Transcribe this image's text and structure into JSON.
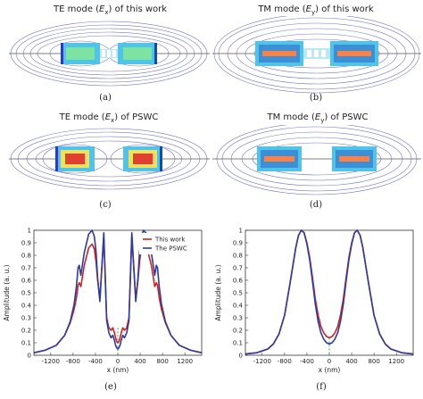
{
  "panels": {
    "a": {
      "title_pre": "TE mode (",
      "title_var": "E",
      "title_sub": "x",
      "title_post": ") of this work",
      "label": "(a)"
    },
    "b": {
      "title_pre": "TM mode (",
      "title_var": "E",
      "title_sub": "y",
      "title_post": ") of this work",
      "label": "(b)"
    },
    "c": {
      "title_pre": "TE mode (",
      "title_var": "E",
      "title_sub": "x",
      "title_post": ") of PSWC",
      "label": "(c)"
    },
    "d": {
      "title_pre": "TM mode (",
      "title_var": "E",
      "title_sub": "y",
      "title_post": ") of PSWC",
      "label": "(d)"
    },
    "e": {
      "label": "(e)"
    },
    "f": {
      "label": "(f)"
    }
  },
  "colors": {
    "this_work": "#d42020",
    "pswc": "#2b3aa8",
    "center_line": "#2ca02c",
    "contour": "#7777cc"
  },
  "chart_data": [
    {
      "type": "line",
      "xlabel": "x (nm)",
      "ylabel": "Amplitude (a. u.)",
      "xlim": [
        -1500,
        1500
      ],
      "ylim": [
        0,
        1
      ],
      "xticks": [
        -1200,
        -800,
        -400,
        0,
        400,
        800,
        1200
      ],
      "xtick_labels": [
        "-1200",
        "-800",
        "-400",
        "0",
        "400",
        "800",
        "1200"
      ],
      "yticks": [
        0,
        0.1,
        0.2,
        0.3,
        0.4,
        0.5,
        0.6,
        0.7,
        0.8,
        0.9,
        1
      ],
      "ytick_labels": [
        "0",
        "0.1",
        "0.2",
        "0.3",
        "0.4",
        "0.5",
        "0.6",
        "0.7",
        "0.8",
        "0.9",
        "1"
      ],
      "legend": "top-right",
      "series": [
        {
          "name": "This work",
          "x": [
            -1500,
            -1300,
            -1100,
            -950,
            -850,
            -780,
            -740,
            -710,
            -690,
            -660,
            -600,
            -520,
            -460,
            -420,
            -390,
            -360,
            -320,
            -250,
            -200,
            -160,
            -120,
            -90,
            -60,
            -40,
            -20,
            0,
            20,
            40,
            60,
            90,
            120,
            160,
            200,
            250,
            320,
            360,
            390,
            420,
            460,
            520,
            600,
            660,
            690,
            710,
            740,
            780,
            850,
            950,
            1100,
            1300,
            1500
          ],
          "y": [
            0.02,
            0.04,
            0.08,
            0.16,
            0.26,
            0.37,
            0.46,
            0.56,
            0.58,
            0.55,
            0.72,
            0.86,
            0.89,
            0.85,
            0.75,
            0.6,
            0.45,
            0.95,
            0.3,
            0.22,
            0.2,
            0.22,
            0.18,
            0.14,
            0.11,
            0.1,
            0.11,
            0.14,
            0.18,
            0.22,
            0.2,
            0.22,
            0.3,
            0.95,
            0.45,
            0.6,
            0.75,
            0.85,
            0.89,
            0.86,
            0.72,
            0.55,
            0.58,
            0.56,
            0.46,
            0.37,
            0.26,
            0.16,
            0.08,
            0.04,
            0.02
          ]
        },
        {
          "name": "The PSWC",
          "x": [
            -1500,
            -1300,
            -1100,
            -950,
            -850,
            -780,
            -740,
            -710,
            -690,
            -660,
            -600,
            -520,
            -460,
            -420,
            -390,
            -360,
            -320,
            -250,
            -200,
            -160,
            -120,
            -90,
            -60,
            -40,
            -20,
            0,
            20,
            40,
            60,
            90,
            120,
            160,
            200,
            250,
            320,
            360,
            390,
            420,
            460,
            520,
            600,
            660,
            690,
            710,
            740,
            780,
            850,
            950,
            1100,
            1300,
            1500
          ],
          "y": [
            0.02,
            0.04,
            0.08,
            0.16,
            0.27,
            0.41,
            0.55,
            0.7,
            0.72,
            0.64,
            0.82,
            0.97,
            1.0,
            0.95,
            0.83,
            0.62,
            0.43,
            0.98,
            0.28,
            0.18,
            0.14,
            0.16,
            0.12,
            0.08,
            0.06,
            0.05,
            0.06,
            0.08,
            0.12,
            0.16,
            0.14,
            0.18,
            0.28,
            0.98,
            0.43,
            0.62,
            0.83,
            0.95,
            1.0,
            0.97,
            0.82,
            0.64,
            0.72,
            0.7,
            0.55,
            0.41,
            0.27,
            0.16,
            0.08,
            0.04,
            0.02
          ]
        }
      ]
    },
    {
      "type": "line",
      "xlabel": "x (nm)",
      "ylabel": "Amplitude (a. u.)",
      "xlim": [
        -1500,
        1500
      ],
      "ylim": [
        0,
        1
      ],
      "xticks": [
        -1200,
        -800,
        -400,
        0,
        400,
        800,
        1200
      ],
      "xtick_labels": [
        "-1200",
        "-800",
        "-400",
        "0",
        "400",
        "800",
        "1200"
      ],
      "yticks": [
        0,
        0.1,
        0.2,
        0.3,
        0.4,
        0.5,
        0.6,
        0.7,
        0.8,
        0.9,
        1
      ],
      "ytick_labels": [
        "0",
        "0.1",
        "0.2",
        "0.3",
        "0.4",
        "0.5",
        "0.6",
        "0.7",
        "0.8",
        "0.9",
        "1"
      ],
      "series": [
        {
          "x": [
            -1500,
            -1300,
            -1100,
            -1000,
            -900,
            -800,
            -700,
            -600,
            -550,
            -500,
            -450,
            -400,
            -350,
            -300,
            -250,
            -200,
            -150,
            -100,
            -50,
            0,
            50,
            100,
            150,
            200,
            250,
            300,
            350,
            400,
            450,
            500,
            550,
            600,
            700,
            800,
            900,
            1000,
            1100,
            1300,
            1500
          ],
          "y": [
            0.01,
            0.02,
            0.05,
            0.09,
            0.17,
            0.32,
            0.58,
            0.86,
            0.96,
            1.0,
            0.98,
            0.9,
            0.78,
            0.62,
            0.45,
            0.32,
            0.23,
            0.18,
            0.15,
            0.14,
            0.15,
            0.18,
            0.23,
            0.32,
            0.45,
            0.62,
            0.78,
            0.9,
            0.98,
            1.0,
            0.96,
            0.86,
            0.58,
            0.32,
            0.17,
            0.09,
            0.05,
            0.02,
            0.01
          ]
        },
        {
          "x": [
            -1500,
            -1300,
            -1100,
            -1000,
            -900,
            -800,
            -700,
            -600,
            -550,
            -500,
            -450,
            -400,
            -350,
            -300,
            -250,
            -200,
            -150,
            -100,
            -50,
            0,
            50,
            100,
            150,
            200,
            250,
            300,
            350,
            400,
            450,
            500,
            550,
            600,
            700,
            800,
            900,
            1000,
            1100,
            1300,
            1500
          ],
          "y": [
            0.01,
            0.02,
            0.05,
            0.09,
            0.17,
            0.32,
            0.58,
            0.86,
            0.96,
            1.0,
            0.98,
            0.89,
            0.76,
            0.59,
            0.41,
            0.27,
            0.18,
            0.13,
            0.1,
            0.09,
            0.1,
            0.13,
            0.18,
            0.27,
            0.41,
            0.59,
            0.76,
            0.89,
            0.98,
            1.0,
            0.96,
            0.86,
            0.58,
            0.32,
            0.17,
            0.09,
            0.05,
            0.02,
            0.01
          ]
        }
      ]
    }
  ]
}
